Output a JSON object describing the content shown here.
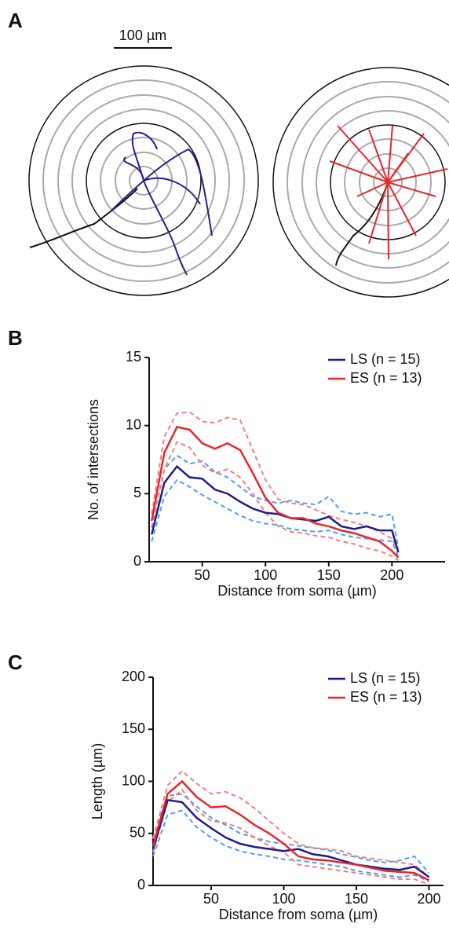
{
  "panel_labels": [
    "A",
    "B",
    "C"
  ],
  "scale_bar": "100 µm",
  "chart_data": [
    {
      "type": "line",
      "x_label": "Distance from soma (µm)",
      "y_label": "No. of intersections",
      "x": [
        10,
        20,
        30,
        40,
        50,
        60,
        70,
        80,
        90,
        100,
        110,
        120,
        130,
        140,
        150,
        160,
        170,
        180,
        190,
        200,
        205
      ],
      "xlim": [
        8,
        242
      ],
      "xticks": [
        50,
        100,
        150,
        200
      ],
      "ylim": [
        0,
        15
      ],
      "yticks": [
        0,
        5,
        10,
        15
      ],
      "series": [
        {
          "name": "LS (n = 15)",
          "color": "#1c1c8c",
          "band_color": "#4f9ff0",
          "values": [
            2.0,
            5.8,
            7.0,
            6.2,
            6.1,
            5.3,
            5.0,
            4.4,
            3.9,
            3.6,
            3.5,
            3.2,
            3.1,
            3.0,
            3.3,
            2.6,
            2.4,
            2.6,
            2.3,
            2.3,
            0.7
          ],
          "upper": [
            2.5,
            6.8,
            7.8,
            7.2,
            7.4,
            6.6,
            6.2,
            5.5,
            4.8,
            4.5,
            4.3,
            4.5,
            4.3,
            4.2,
            4.8,
            3.7,
            3.5,
            3.6,
            3.3,
            3.5,
            1.0
          ],
          "lower": [
            1.5,
            4.8,
            6.0,
            5.5,
            4.9,
            4.4,
            3.9,
            3.4,
            3.0,
            2.8,
            2.7,
            2.4,
            2.3,
            2.2,
            2.3,
            2.0,
            1.8,
            1.7,
            1.6,
            1.5,
            0.4
          ]
        },
        {
          "name": "ES (n = 13)",
          "color": "#e8262a",
          "band_color": "#f08080",
          "values": [
            3.0,
            8.0,
            9.9,
            9.7,
            8.7,
            8.3,
            8.7,
            8.2,
            6.5,
            4.7,
            3.6,
            3.2,
            3.2,
            2.8,
            2.6,
            2.3,
            2.1,
            1.8,
            1.5,
            0.8,
            0.3
          ],
          "upper": [
            3.5,
            9.2,
            10.9,
            11.0,
            10.3,
            10.2,
            10.6,
            10.4,
            8.2,
            6.0,
            4.6,
            4.3,
            4.2,
            3.8,
            3.4,
            3.1,
            2.9,
            2.6,
            2.2,
            1.7,
            0.8
          ],
          "lower": [
            2.5,
            6.8,
            8.8,
            8.4,
            7.1,
            6.5,
            6.8,
            6.2,
            5.0,
            3.6,
            2.6,
            2.2,
            2.1,
            1.9,
            1.8,
            1.5,
            1.3,
            1.0,
            0.8,
            0.4,
            0.1
          ]
        }
      ]
    },
    {
      "type": "line",
      "x_label": "Distance from soma (µm)",
      "y_label": "Length (µm)",
      "x": [
        10,
        20,
        30,
        40,
        50,
        60,
        70,
        80,
        90,
        100,
        110,
        120,
        130,
        140,
        150,
        160,
        170,
        180,
        190,
        200
      ],
      "xlim": [
        10,
        210
      ],
      "xticks": [
        50,
        100,
        150,
        200
      ],
      "ylim": [
        0,
        200
      ],
      "yticks": [
        0,
        50,
        100,
        150,
        200
      ],
      "series": [
        {
          "name": "LS (n = 15)",
          "color": "#1c1c8c",
          "band_color": "#4f9ff0",
          "values": [
            35,
            82,
            80,
            65,
            55,
            46,
            40,
            37,
            35,
            33,
            35,
            30,
            28,
            24,
            20,
            18,
            16,
            15,
            18,
            8
          ],
          "upper": [
            45,
            86,
            88,
            76,
            65,
            58,
            50,
            46,
            42,
            40,
            38,
            36,
            34,
            30,
            27,
            24,
            22,
            24,
            28,
            12
          ],
          "lower": [
            28,
            68,
            72,
            56,
            46,
            38,
            33,
            30,
            28,
            25,
            24,
            22,
            20,
            18,
            14,
            12,
            10,
            8,
            10,
            4
          ]
        },
        {
          "name": "ES (n = 13)",
          "color": "#e8262a",
          "band_color": "#f08080",
          "values": [
            38,
            88,
            100,
            85,
            75,
            76,
            68,
            58,
            50,
            40,
            28,
            25,
            24,
            22,
            20,
            17,
            14,
            13,
            12,
            5
          ],
          "upper": [
            45,
            96,
            110,
            98,
            88,
            90,
            84,
            74,
            62,
            50,
            40,
            36,
            35,
            33,
            28,
            26,
            24,
            22,
            20,
            8
          ],
          "lower": [
            32,
            80,
            92,
            72,
            62,
            60,
            55,
            46,
            38,
            32,
            20,
            18,
            16,
            14,
            12,
            10,
            8,
            6,
            6,
            1
          ]
        }
      ]
    }
  ]
}
